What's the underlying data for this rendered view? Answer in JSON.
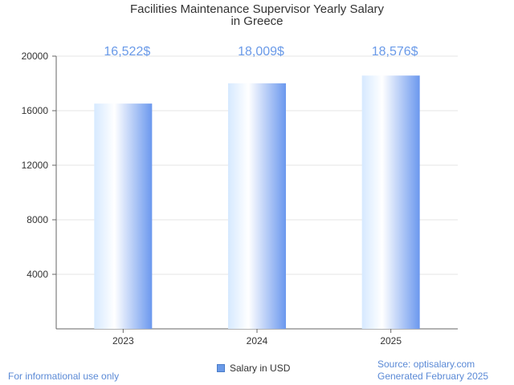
{
  "chart_data": {
    "type": "bar",
    "title_lines": [
      "Facilities Maintenance Supervisor Yearly Salary",
      "in Greece"
    ],
    "categories": [
      "2023",
      "2024",
      "2025"
    ],
    "series": [
      {
        "name": "Salary in USD",
        "values": [
          16522,
          18009,
          18576
        ],
        "labels": [
          "16,522$",
          "18,009$",
          "18,576$"
        ]
      }
    ],
    "yticks": [
      "4000",
      "8000",
      "12000",
      "16000",
      "20000"
    ],
    "ylim": [
      0,
      20000
    ],
    "grid": true,
    "legend_position": "bottom-center",
    "bar_gradient_colors": [
      "#d6e9ff",
      "#ffffff",
      "#6b98ee"
    ],
    "label_color": "#6a9ae8"
  },
  "footer": {
    "disclaimer": "For informational use only",
    "source": "Source: optisalary.com",
    "generated": "Generated February 2025"
  }
}
